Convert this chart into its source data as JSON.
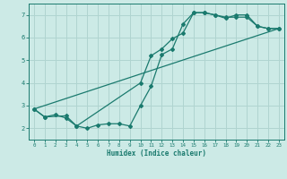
{
  "xlabel": "Humidex (Indice chaleur)",
  "ylabel": "",
  "bg_color": "#cceae6",
  "grid_color": "#b0d4d0",
  "line_color": "#1a7a6e",
  "xlim": [
    -0.5,
    23.5
  ],
  "ylim": [
    1.5,
    7.5
  ],
  "xticks": [
    0,
    1,
    2,
    3,
    4,
    5,
    6,
    7,
    8,
    9,
    10,
    11,
    12,
    13,
    14,
    15,
    16,
    17,
    18,
    19,
    20,
    21,
    22,
    23
  ],
  "yticks": [
    2,
    3,
    4,
    5,
    6,
    7
  ],
  "line1_x": [
    0,
    1,
    2,
    3,
    4,
    5,
    6,
    7,
    8,
    9,
    10,
    11,
    12,
    13,
    14,
    15,
    16,
    17,
    18,
    19,
    20,
    21,
    22,
    23
  ],
  "line1_y": [
    2.85,
    2.5,
    2.6,
    2.45,
    2.1,
    2.0,
    2.15,
    2.2,
    2.2,
    2.1,
    3.0,
    3.85,
    5.25,
    5.5,
    6.6,
    7.1,
    7.1,
    7.0,
    6.85,
    7.0,
    7.0,
    6.5,
    6.4,
    6.4
  ],
  "line2_x": [
    0,
    1,
    3,
    4,
    10,
    11,
    12,
    13,
    14,
    15,
    16,
    17,
    18,
    19,
    20,
    21,
    22,
    23
  ],
  "line2_y": [
    2.85,
    2.5,
    2.55,
    2.1,
    4.0,
    5.2,
    5.5,
    5.95,
    6.2,
    7.1,
    7.1,
    7.0,
    6.9,
    6.9,
    6.9,
    6.5,
    6.4,
    6.4
  ],
  "line3_x": [
    0,
    23
  ],
  "line3_y": [
    2.85,
    6.4
  ]
}
